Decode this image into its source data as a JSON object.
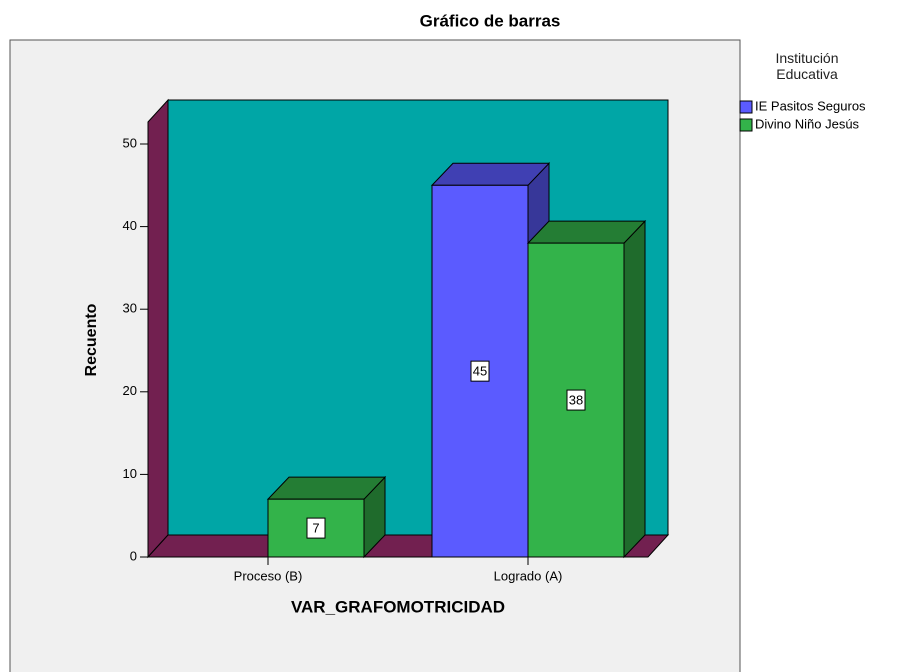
{
  "chart_data": {
    "type": "bar3d",
    "title": "Gráfico de barras",
    "categories": [
      "Proceso (B)",
      "Logrado (A)"
    ],
    "series": [
      {
        "name": "IE Pasitos Seguros",
        "color": "#5b5bff",
        "values": [
          null,
          45
        ]
      },
      {
        "name": "Divino Niño Jesús",
        "color": "#33b34a",
        "values": [
          7,
          38
        ]
      }
    ],
    "x_label": "VAR_GRAFOMOTRICIDAD",
    "y_label": "Recuento",
    "legend_title": "Institución Educativa",
    "ylim": [
      0,
      50
    ],
    "yticks": [
      0,
      10,
      20,
      30,
      40,
      50
    ]
  }
}
